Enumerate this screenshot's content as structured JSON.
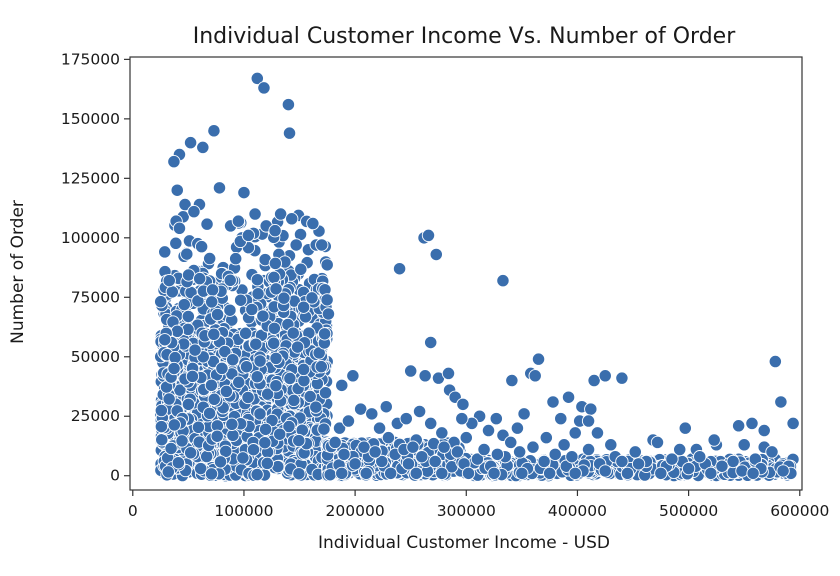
{
  "chart_data": {
    "type": "scatter",
    "title": "Individual Customer Income Vs. Number of Order",
    "xlabel": "Individual Customer Income - USD",
    "ylabel": "Number of Order",
    "xlim": [
      -2500,
      602000
    ],
    "ylim": [
      -6000,
      176000
    ],
    "xticks": [
      0,
      100000,
      200000,
      300000,
      400000,
      500000,
      600000
    ],
    "xtick_labels": [
      "0",
      "100000",
      "200000",
      "300000",
      "400000",
      "500000",
      "600000"
    ],
    "yticks": [
      0,
      25000,
      50000,
      75000,
      100000,
      125000,
      150000,
      175000
    ],
    "ytick_labels": [
      "0",
      "25000",
      "50000",
      "75000",
      "100000",
      "125000",
      "150000",
      "175000"
    ],
    "grid": false,
    "legend": "none",
    "marker_color": "#3a6ead",
    "dense_cluster": {
      "note_x_range": [
        25000,
        175000
      ],
      "y_range": [
        0,
        110000
      ]
    },
    "points": [
      [
        112000,
        167000
      ],
      [
        118000,
        163000
      ],
      [
        140000,
        156000
      ],
      [
        141000,
        144000
      ],
      [
        73000,
        145000
      ],
      [
        52000,
        140000
      ],
      [
        63000,
        138000
      ],
      [
        42000,
        135000
      ],
      [
        37000,
        132000
      ],
      [
        78000,
        121000
      ],
      [
        100000,
        119000
      ],
      [
        40000,
        120000
      ],
      [
        47000,
        114000
      ],
      [
        60000,
        114000
      ],
      [
        55000,
        111000
      ],
      [
        110000,
        110000
      ],
      [
        133000,
        110000
      ],
      [
        143000,
        108000
      ],
      [
        88000,
        105000
      ],
      [
        95000,
        107000
      ],
      [
        162000,
        106000
      ],
      [
        39000,
        107000
      ],
      [
        42000,
        104000
      ],
      [
        120000,
        105000
      ],
      [
        128000,
        103000
      ],
      [
        104000,
        101000
      ],
      [
        147000,
        97000
      ],
      [
        158000,
        95000
      ],
      [
        165000,
        97000
      ],
      [
        170000,
        97000
      ],
      [
        176000,
        68000
      ],
      [
        262000,
        100000
      ],
      [
        266000,
        101000
      ],
      [
        240000,
        87000
      ],
      [
        273000,
        93000
      ],
      [
        333000,
        82000
      ],
      [
        268000,
        56000
      ],
      [
        365000,
        49000
      ],
      [
        358000,
        43000
      ],
      [
        362000,
        42000
      ],
      [
        341000,
        40000
      ],
      [
        327000,
        24000
      ],
      [
        198000,
        42000
      ],
      [
        188000,
        38000
      ],
      [
        250000,
        44000
      ],
      [
        263000,
        42000
      ],
      [
        275000,
        41000
      ],
      [
        285000,
        36000
      ],
      [
        290000,
        33000
      ],
      [
        297000,
        30000
      ],
      [
        284000,
        43000
      ],
      [
        415000,
        40000
      ],
      [
        425000,
        42000
      ],
      [
        440000,
        41000
      ],
      [
        378000,
        31000
      ],
      [
        392000,
        33000
      ],
      [
        404000,
        29000
      ],
      [
        412000,
        28000
      ],
      [
        385000,
        24000
      ],
      [
        402000,
        23000
      ],
      [
        410000,
        23000
      ],
      [
        418000,
        18000
      ],
      [
        352000,
        26000
      ],
      [
        346000,
        20000
      ],
      [
        333000,
        17000
      ],
      [
        320000,
        19000
      ],
      [
        312000,
        25000
      ],
      [
        305000,
        22000
      ],
      [
        296000,
        24000
      ],
      [
        228000,
        29000
      ],
      [
        205000,
        28000
      ],
      [
        215000,
        26000
      ],
      [
        238000,
        22000
      ],
      [
        246000,
        24000
      ],
      [
        222000,
        20000
      ],
      [
        230000,
        16000
      ],
      [
        258000,
        27000
      ],
      [
        268000,
        22000
      ],
      [
        278000,
        18000
      ],
      [
        255000,
        15000
      ],
      [
        289000,
        14000
      ],
      [
        300000,
        16000
      ],
      [
        340000,
        14000
      ],
      [
        360000,
        12000
      ],
      [
        372000,
        16000
      ],
      [
        388000,
        13000
      ],
      [
        398000,
        18000
      ],
      [
        430000,
        13000
      ],
      [
        452000,
        10000
      ],
      [
        468000,
        15000
      ],
      [
        472000,
        14000
      ],
      [
        492000,
        11000
      ],
      [
        497000,
        20000
      ],
      [
        507000,
        11000
      ],
      [
        525000,
        13000
      ],
      [
        523000,
        15000
      ],
      [
        545000,
        21000
      ],
      [
        557000,
        22000
      ],
      [
        550000,
        13000
      ],
      [
        568000,
        19000
      ],
      [
        578000,
        48000
      ],
      [
        583000,
        31000
      ],
      [
        568000,
        12000
      ],
      [
        575000,
        10000
      ],
      [
        594000,
        22000
      ],
      [
        590000,
        4000
      ],
      [
        592000,
        1000
      ],
      [
        560000,
        7000
      ],
      [
        540000,
        6000
      ],
      [
        515000,
        5000
      ],
      [
        480000,
        4000
      ],
      [
        462000,
        6000
      ],
      [
        448000,
        3000
      ],
      [
        434000,
        8000
      ],
      [
        420000,
        5000
      ],
      [
        405000,
        2000
      ],
      [
        390000,
        4000
      ],
      [
        370000,
        6000
      ],
      [
        355000,
        3000
      ],
      [
        335000,
        8000
      ],
      [
        322000,
        4000
      ],
      [
        310000,
        7000
      ],
      [
        298000,
        5000
      ],
      [
        286000,
        9000
      ],
      [
        272000,
        6000
      ],
      [
        260000,
        8000
      ],
      [
        248000,
        5000
      ],
      [
        236000,
        9000
      ],
      [
        224000,
        6000
      ],
      [
        212000,
        8000
      ],
      [
        200000,
        5000
      ],
      [
        190000,
        9000
      ],
      [
        182000,
        14000
      ],
      [
        186000,
        20000
      ],
      [
        194000,
        23000
      ],
      [
        208000,
        12000
      ],
      [
        218000,
        10000
      ],
      [
        244000,
        11000
      ],
      [
        252000,
        12000
      ],
      [
        280000,
        12000
      ],
      [
        292000,
        10000
      ],
      [
        316000,
        11000
      ],
      [
        328000,
        9000
      ],
      [
        348000,
        10000
      ],
      [
        380000,
        9000
      ],
      [
        395000,
        8000
      ],
      [
        410000,
        11000
      ],
      [
        440000,
        6000
      ],
      [
        455000,
        5000
      ],
      [
        485000,
        7000
      ],
      [
        500000,
        3000
      ],
      [
        530000,
        4000
      ],
      [
        548000,
        2000
      ],
      [
        565000,
        3000
      ],
      [
        585000,
        2000
      ],
      [
        475000,
        1000
      ],
      [
        445000,
        1000
      ],
      [
        425000,
        2000
      ],
      [
        398000,
        1000
      ],
      [
        375000,
        1000
      ],
      [
        350000,
        1000
      ],
      [
        325000,
        1000
      ],
      [
        302000,
        1000
      ],
      [
        278000,
        1000
      ],
      [
        255000,
        1000
      ],
      [
        232000,
        1000
      ],
      [
        210000,
        1000
      ],
      [
        188000,
        1000
      ],
      [
        520000,
        1000
      ],
      [
        558000,
        1000
      ],
      [
        510000,
        8000
      ]
    ]
  }
}
